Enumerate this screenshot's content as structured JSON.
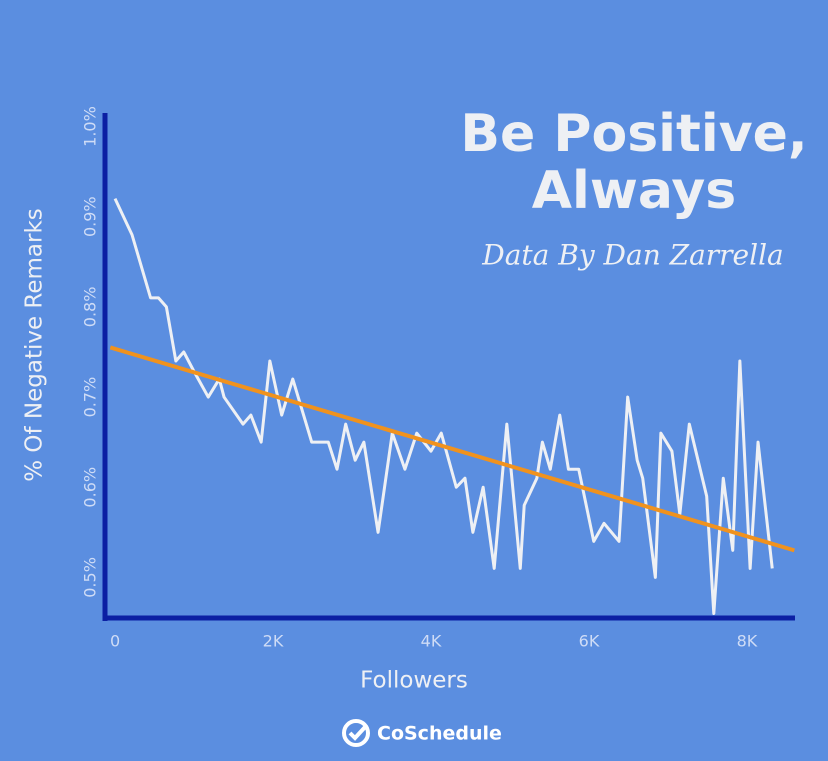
{
  "chart_data": {
    "type": "line",
    "title": [
      "Be Positive,",
      "Always"
    ],
    "subtitle": "Data By Dan Zarrella",
    "x_label": "Followers",
    "y_label": "% Of Negative Remarks",
    "brand": "CoSchedule",
    "xlim": [
      -127,
      8608
    ],
    "ylim": [
      0.455,
      1.015
    ],
    "xticks": [
      0,
      {
        "value": 2000,
        "label": "2K"
      },
      {
        "value": 4000,
        "label": "4K"
      },
      {
        "value": 6000,
        "label": "6K"
      },
      {
        "value": 8000,
        "label": "8K"
      }
    ],
    "yticks": [
      {
        "value": 0.5,
        "label": "0.5%"
      },
      {
        "value": 0.6,
        "label": "0.6%"
      },
      {
        "value": 0.7,
        "label": "0.7%"
      },
      {
        "value": 0.8,
        "label": "0.8%"
      },
      {
        "value": 0.9,
        "label": "0.9%"
      },
      {
        "value": 1.0,
        "label": "1.0%"
      }
    ],
    "series": [
      {
        "color": "#eef0f4",
        "x": [
          0,
          215,
          450,
          550,
          650,
          770,
          870,
          990,
          1180,
          1320,
          1380,
          1620,
          1720,
          1850,
          1960,
          2110,
          2250,
          2490,
          2700,
          2810,
          2920,
          3040,
          3150,
          3330,
          3510,
          3670,
          3820,
          4000,
          4130,
          4320,
          4430,
          4530,
          4660,
          4800,
          4960,
          5130,
          5180,
          5340,
          5410,
          5510,
          5630,
          5740,
          5870,
          6060,
          6190,
          6380,
          6490,
          6610,
          6680,
          6840,
          6910,
          7050,
          7150,
          7270,
          7490,
          7580,
          7700,
          7820,
          7910,
          8040,
          8140,
          8320
        ],
        "values": [
          0.92,
          0.88,
          0.81,
          0.81,
          0.8,
          0.74,
          0.75,
          0.73,
          0.7,
          0.72,
          0.7,
          0.67,
          0.68,
          0.65,
          0.74,
          0.68,
          0.72,
          0.65,
          0.65,
          0.62,
          0.67,
          0.63,
          0.65,
          0.55,
          0.66,
          0.62,
          0.66,
          0.64,
          0.66,
          0.6,
          0.61,
          0.55,
          0.6,
          0.51,
          0.67,
          0.51,
          0.58,
          0.61,
          0.65,
          0.62,
          0.68,
          0.62,
          0.62,
          0.54,
          0.56,
          0.54,
          0.7,
          0.63,
          0.61,
          0.5,
          0.66,
          0.64,
          0.57,
          0.67,
          0.59,
          0.46,
          0.61,
          0.53,
          0.74,
          0.51,
          0.65,
          0.51
        ]
      },
      {
        "color": "#f0921e",
        "x": [
          -60,
          8600
        ],
        "values": [
          0.755,
          0.53
        ]
      }
    ],
    "axis_color": "#0b1fa3"
  }
}
